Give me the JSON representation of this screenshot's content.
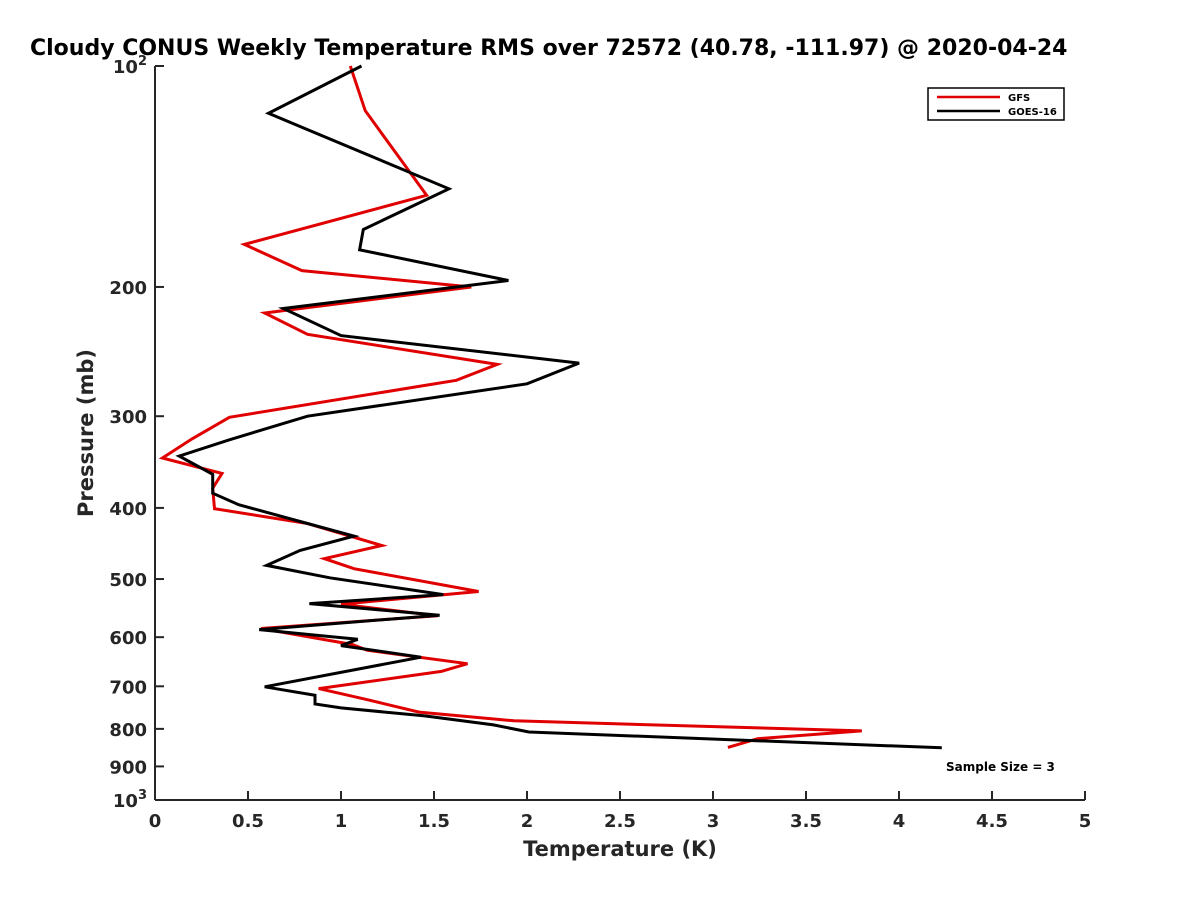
{
  "chart_data": {
    "type": "line",
    "title": "Cloudy CONUS Weekly Temperature RMS over 72572 (40.78, -111.97) @ 2020-04-24",
    "xlabel": "Temperature (K)",
    "ylabel": "Pressure (mb)",
    "xlim": [
      0,
      5
    ],
    "ylim": [
      100,
      1000
    ],
    "y_scale": "log",
    "y_direction": "reverse",
    "x_ticks": [
      "0",
      "0.5",
      "1",
      "1.5",
      "2",
      "2.5",
      "3",
      "3.5",
      "4",
      "4.5",
      "5"
    ],
    "x_tick_values": [
      0,
      0.5,
      1,
      1.5,
      2,
      2.5,
      3,
      3.5,
      4,
      4.5,
      5
    ],
    "y_ticks": [
      {
        "value": 100,
        "base": "10",
        "exp": "2"
      },
      {
        "value": 200,
        "label": "200"
      },
      {
        "value": 300,
        "label": "300"
      },
      {
        "value": 400,
        "label": "400"
      },
      {
        "value": 500,
        "label": "500"
      },
      {
        "value": 600,
        "label": "600"
      },
      {
        "value": 700,
        "label": "700"
      },
      {
        "value": 800,
        "label": "800"
      },
      {
        "value": 900,
        "label": "900"
      },
      {
        "value": 1000,
        "base": "10",
        "exp": "3"
      }
    ],
    "legend_position": "top-right",
    "annotation": "Sample Size = 3",
    "series": [
      {
        "name": "GFS",
        "color": "#e00000",
        "x": [
          1.05,
          1.13,
          1.46,
          0.48,
          0.79,
          1.7,
          0.59,
          0.82,
          1.84,
          1.62,
          0.4,
          0.2,
          0.04,
          0.36,
          0.31,
          0.32,
          0.82,
          1.22,
          0.91,
          1.07,
          1.74,
          1.0,
          1.52,
          0.57,
          1.06,
          1.14,
          1.68,
          1.54,
          0.88,
          1.13,
          1.42,
          1.93,
          3.8,
          3.24,
          3.08
        ],
        "y": [
          100,
          115,
          150,
          175,
          190,
          200,
          217,
          232,
          255,
          268,
          301,
          322,
          342,
          359,
          376,
          401,
          420,
          450,
          469,
          484,
          520,
          541,
          561,
          584,
          614,
          625,
          652,
          668,
          705,
          729,
          759,
          780,
          805,
          825,
          848
        ]
      },
      {
        "name": "GOES-16",
        "color": "#000000",
        "x": [
          1.11,
          0.61,
          1.58,
          1.12,
          1.1,
          1.9,
          0.69,
          1.0,
          2.28,
          2.0,
          0.82,
          0.4,
          0.13,
          0.31,
          0.31,
          0.45,
          0.82,
          1.07,
          0.78,
          0.6,
          0.94,
          1.55,
          0.83,
          1.53,
          0.56,
          1.09,
          1.0,
          1.43,
          0.59,
          0.86,
          0.86,
          1.0,
          1.45,
          1.82,
          2.01,
          4.23
        ],
        "y": [
          100,
          116,
          147,
          167,
          178,
          196,
          214,
          233,
          254,
          271,
          300,
          323,
          340,
          360,
          382,
          396,
          420,
          437,
          457,
          479,
          498,
          525,
          540,
          560,
          586,
          604,
          616,
          639,
          701,
          720,
          740,
          749,
          768,
          790,
          808,
          849
        ]
      }
    ]
  }
}
